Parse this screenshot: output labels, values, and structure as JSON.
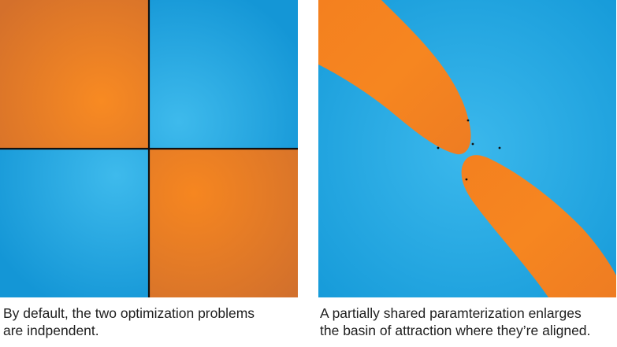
{
  "colors": {
    "orange": "#f5821f",
    "orange_dark": "#d8722a",
    "blue": "#1aa3e0",
    "blue_light": "#3bb8ec",
    "boundary": "#111111"
  },
  "panels": [
    {
      "caption_lines": [
        "By default, the two optimization problems",
        "are indpendent."
      ]
    },
    {
      "caption_lines": [
        "A partially shared paramterization enlarges",
        "the basin of attraction where they’re aligned."
      ]
    }
  ]
}
